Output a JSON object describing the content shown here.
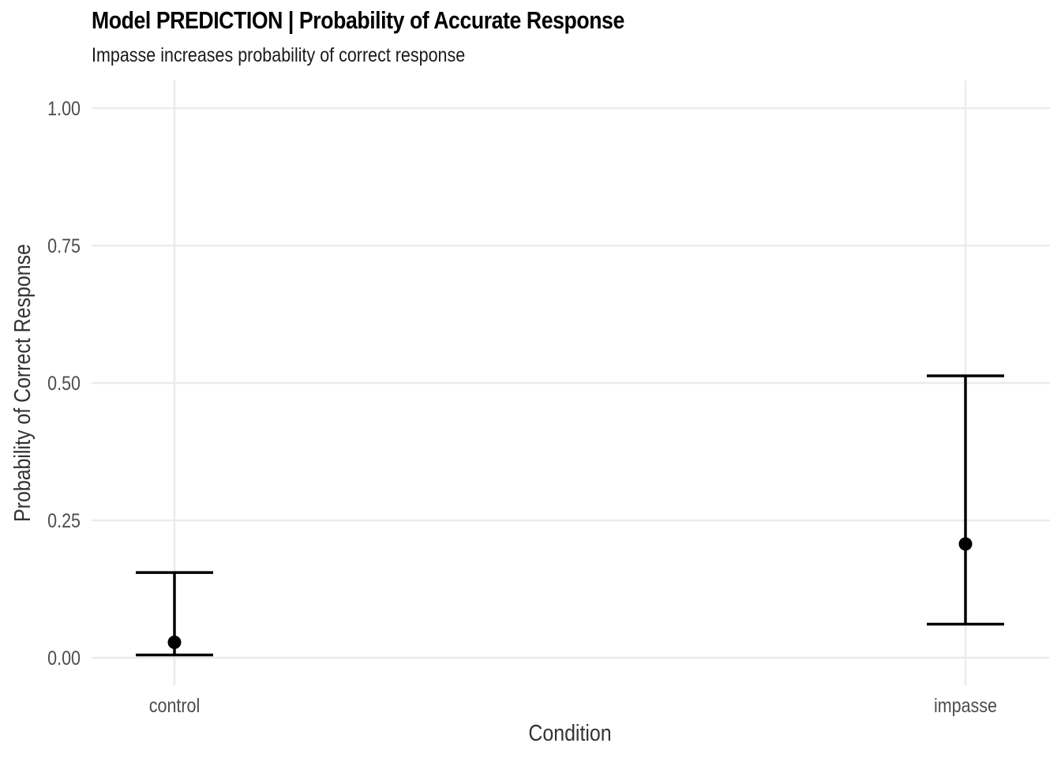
{
  "chart": {
    "title": "Model PREDICTION | Probability of Accurate Response",
    "subtitle": "Impasse increases probability of correct response"
  },
  "chart_data": {
    "type": "scatter",
    "title": "Model PREDICTION | Probability of Accurate Response",
    "subtitle": "Impasse increases probability of correct response",
    "xlabel": "Condition",
    "ylabel": "Probability of Correct Response",
    "categories": [
      "control",
      "impasse"
    ],
    "points": [
      {
        "category": "control",
        "estimate": 0.028,
        "lower": 0.005,
        "upper": 0.155
      },
      {
        "category": "impasse",
        "estimate": 0.207,
        "lower": 0.061,
        "upper": 0.513
      }
    ],
    "ylim": [
      -0.05,
      1.05
    ],
    "yticks": [
      0,
      0.25,
      0.5,
      0.75,
      1.0
    ],
    "ytick_labels": [
      "0.00",
      "0.25",
      "0.50",
      "0.75",
      "1.00"
    ],
    "grid": true,
    "legend": "none",
    "colors": {
      "mark": "#000000",
      "grid": "#ebebeb",
      "tick_text": "#4d4d4d",
      "axis_title": "#333333"
    }
  }
}
